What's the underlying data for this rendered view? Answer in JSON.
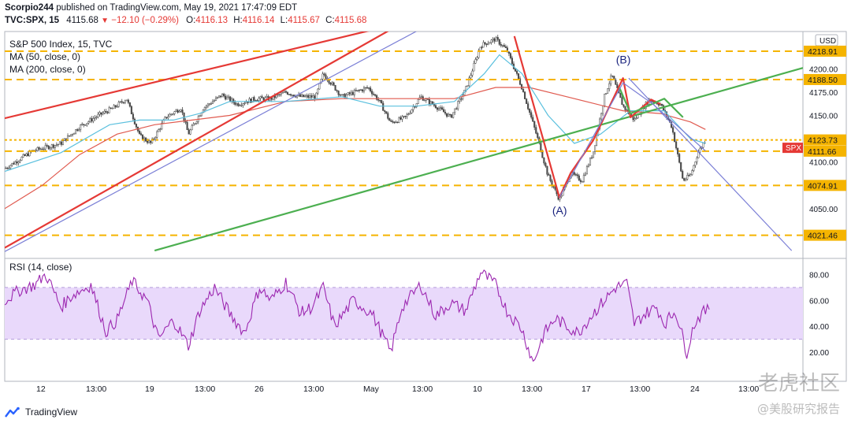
{
  "header": {
    "publisher": "Scorpio244",
    "publish_text": "published on TradingView.com, May 19, 2021 17:47:09 EDT",
    "symbol": "TVC:SPX, 15",
    "last": "4115.68",
    "change": "−12.10 (−0.29%)",
    "open_label": "O:",
    "open": "4116.13",
    "high_label": "H:",
    "high": "4116.14",
    "low_label": "L:",
    "low": "4115.67",
    "close_label": "C:",
    "close": "4115.68"
  },
  "legend": {
    "title": "S&P 500 Index, 15, TVC",
    "ma50": "MA (50, close, 0)",
    "ma200": "MA (200, close, 0)",
    "rsi": "RSI (14, close)"
  },
  "footer": {
    "brand": "TradingView"
  },
  "watermark": {
    "line1": "老虎社区",
    "line2": "@美股研究报告"
  },
  "colors": {
    "up": "#26a69a",
    "down": "#ef5350",
    "candle": "#4a4a4a",
    "ma50": "#5bc0de",
    "ma200": "#e05a4f",
    "level": "#f5b400",
    "red_line": "#e53935",
    "green_line": "#4caf50",
    "blue_line": "#7b7fd6",
    "rsi": "#9c27b0",
    "rsi_band": "#e9d9fb",
    "symbol_tag": "#e53935"
  },
  "chart_data": [
    {
      "type": "line",
      "title": "S&P 500 Index, 15, TVC",
      "ylim": [
        4000,
        4240
      ],
      "y_ticks": [
        4050,
        4100,
        4150,
        4175,
        4200
      ],
      "y_tick_labels": [
        "4050.00",
        "4100.00",
        "4150.00",
        "4175.00",
        "4200.00"
      ],
      "x_tick_labels": [
        "12",
        "13:00",
        "19",
        "13:00",
        "26",
        "13:00",
        "May",
        "13:00",
        "10",
        "13:00",
        "17",
        "13:00",
        "24",
        "13:00"
      ],
      "price_path": [
        [
          0,
          4093
        ],
        [
          15,
          4112
        ],
        [
          30,
          4120
        ],
        [
          40,
          4138
        ],
        [
          50,
          4150
        ],
        [
          58,
          4158
        ],
        [
          65,
          4168
        ],
        [
          72,
          4128
        ],
        [
          78,
          4120
        ],
        [
          86,
          4148
        ],
        [
          94,
          4158
        ],
        [
          98,
          4130
        ],
        [
          106,
          4158
        ],
        [
          116,
          4172
        ],
        [
          124,
          4162
        ],
        [
          134,
          4168
        ],
        [
          142,
          4168
        ],
        [
          150,
          4175
        ],
        [
          158,
          4170
        ],
        [
          166,
          4170
        ],
        [
          170,
          4195
        ],
        [
          180,
          4170
        ],
        [
          194,
          4180
        ],
        [
          200,
          4165
        ],
        [
          206,
          4142
        ],
        [
          214,
          4148
        ],
        [
          222,
          4170
        ],
        [
          230,
          4160
        ],
        [
          238,
          4148
        ],
        [
          246,
          4178
        ],
        [
          254,
          4225
        ],
        [
          262,
          4232
        ],
        [
          268,
          4220
        ],
        [
          276,
          4180
        ],
        [
          284,
          4128
        ],
        [
          290,
          4085
        ],
        [
          296,
          4060
        ],
        [
          302,
          4088
        ],
        [
          308,
          4080
        ],
        [
          314,
          4110
        ],
        [
          320,
          4170
        ],
        [
          324,
          4193
        ],
        [
          330,
          4160
        ],
        [
          336,
          4145
        ],
        [
          344,
          4167
        ],
        [
          350,
          4162
        ],
        [
          356,
          4138
        ],
        [
          362,
          4080
        ],
        [
          366,
          4086
        ],
        [
          370,
          4110
        ],
        [
          374,
          4124
        ]
      ],
      "series": [
        {
          "name": "MA (50, close, 0)",
          "values": [
            [
              0,
              4090
            ],
            [
              30,
              4110
            ],
            [
              56,
              4140
            ],
            [
              72,
              4145
            ],
            [
              90,
              4145
            ],
            [
              104,
              4152
            ],
            [
              120,
              4165
            ],
            [
              150,
              4165
            ],
            [
              180,
              4170
            ],
            [
              200,
              4160
            ],
            [
              220,
              4160
            ],
            [
              240,
              4165
            ],
            [
              256,
              4195
            ],
            [
              264,
              4215
            ],
            [
              276,
              4195
            ],
            [
              290,
              4150
            ],
            [
              304,
              4120
            ],
            [
              318,
              4130
            ],
            [
              334,
              4155
            ],
            [
              352,
              4155
            ],
            [
              366,
              4125
            ],
            [
              374,
              4120
            ]
          ]
        },
        {
          "name": "MA (200, close, 0)",
          "values": [
            [
              0,
              4050
            ],
            [
              20,
              4075
            ],
            [
              40,
              4108
            ],
            [
              60,
              4130
            ],
            [
              80,
              4140
            ],
            [
              100,
              4145
            ],
            [
              120,
              4150
            ],
            [
              150,
              4165
            ],
            [
              180,
              4168
            ],
            [
              210,
              4168
            ],
            [
              240,
              4168
            ],
            [
              262,
              4180
            ],
            [
              280,
              4180
            ],
            [
              300,
              4170
            ],
            [
              330,
              4155
            ],
            [
              350,
              4152
            ],
            [
              366,
              4143
            ],
            [
              374,
              4135
            ]
          ]
        }
      ],
      "levels": [
        {
          "value": 4218.91,
          "label": "4218.91",
          "style": "dashed"
        },
        {
          "value": 4188.5,
          "label": "4188.50",
          "style": "dashed"
        },
        {
          "value": 4123.73,
          "label": "4123.73",
          "style": "dotted"
        },
        {
          "value": 4111.66,
          "label": "4111.66",
          "style": "dashed"
        },
        {
          "value": 4074.91,
          "label": "4074.91",
          "style": "dashed"
        },
        {
          "value": 4021.46,
          "label": "4021.46",
          "style": "dashed"
        }
      ],
      "trend_lines": [
        {
          "color": "red_line",
          "points": [
            [
              0,
              4147
            ],
            [
              232,
              4259
            ]
          ]
        },
        {
          "color": "red_line",
          "points": [
            [
              0,
              4008
            ],
            [
              220,
              4258
            ]
          ]
        },
        {
          "color": "blue_line",
          "points": [
            [
              0,
              4004
            ],
            [
              226,
              4247
            ]
          ]
        },
        {
          "color": "green_line",
          "points": [
            [
              80,
              4005
            ],
            [
              426,
              4201
            ]
          ]
        },
        {
          "color": "blue_line",
          "points": [
            [
              333,
              4190
            ],
            [
              420,
              4005
            ]
          ]
        }
      ],
      "wave_lines": [
        {
          "color": "red_line",
          "points": [
            [
              272,
              4235
            ],
            [
              296,
              4062
            ],
            [
              302,
              4088
            ],
            [
              314,
              4123
            ],
            [
              330,
              4190
            ],
            [
              334,
              4148
            ],
            [
              345,
              4167
            ],
            [
              350,
              4162
            ]
          ]
        },
        {
          "color": "green_line",
          "points": [
            [
              328,
              4180
            ],
            [
              334,
              4152
            ],
            [
              352,
              4168
            ],
            [
              362,
              4148
            ]
          ]
        },
        {
          "color": "blue_line",
          "points": [
            [
              296,
              4062
            ],
            [
              330,
              4185
            ],
            [
              346,
              4162
            ],
            [
              374,
              4112
            ]
          ]
        }
      ],
      "annotations": [
        {
          "text": "(A)",
          "x": 296,
          "y": 4048
        },
        {
          "text": "(B)",
          "x": 330,
          "y": 4210
        }
      ],
      "symbol_tag": "SPX",
      "symbol_tag_value": 4115.68,
      "currency": "USD"
    },
    {
      "type": "line",
      "title": "RSI (14, close)",
      "ylim": [
        0,
        90
      ],
      "y_ticks": [
        20,
        40,
        60,
        80
      ],
      "y_tick_labels": [
        "20.00",
        "40.00",
        "60.00",
        "80.00"
      ],
      "band": [
        30,
        70
      ],
      "series": [
        {
          "name": "RSI (14, close)",
          "values": [
            [
              0,
              60
            ],
            [
              8,
              68
            ],
            [
              16,
              72
            ],
            [
              22,
              80
            ],
            [
              30,
              55
            ],
            [
              36,
              64
            ],
            [
              46,
              72
            ],
            [
              54,
              36
            ],
            [
              60,
              45
            ],
            [
              68,
              75
            ],
            [
              76,
              60
            ],
            [
              82,
              30
            ],
            [
              90,
              45
            ],
            [
              98,
              25
            ],
            [
              104,
              52
            ],
            [
              112,
              70
            ],
            [
              120,
              50
            ],
            [
              128,
              35
            ],
            [
              136,
              70
            ],
            [
              142,
              60
            ],
            [
              150,
              74
            ],
            [
              158,
              50
            ],
            [
              164,
              55
            ],
            [
              170,
              70
            ],
            [
              176,
              40
            ],
            [
              186,
              60
            ],
            [
              196,
              50
            ],
            [
              206,
              20
            ],
            [
              212,
              55
            ],
            [
              222,
              72
            ],
            [
              230,
              48
            ],
            [
              238,
              58
            ],
            [
              246,
              52
            ],
            [
              254,
              82
            ],
            [
              262,
              72
            ],
            [
              268,
              52
            ],
            [
              276,
              38
            ],
            [
              282,
              12
            ],
            [
              288,
              35
            ],
            [
              294,
              46
            ],
            [
              300,
              40
            ],
            [
              306,
              35
            ],
            [
              314,
              50
            ],
            [
              320,
              60
            ],
            [
              326,
              70
            ],
            [
              332,
              73
            ],
            [
              336,
              42
            ],
            [
              342,
              50
            ],
            [
              348,
              55
            ],
            [
              352,
              42
            ],
            [
              358,
              52
            ],
            [
              364,
              20
            ],
            [
              368,
              42
            ],
            [
              372,
              50
            ],
            [
              376,
              53
            ]
          ]
        }
      ]
    }
  ]
}
